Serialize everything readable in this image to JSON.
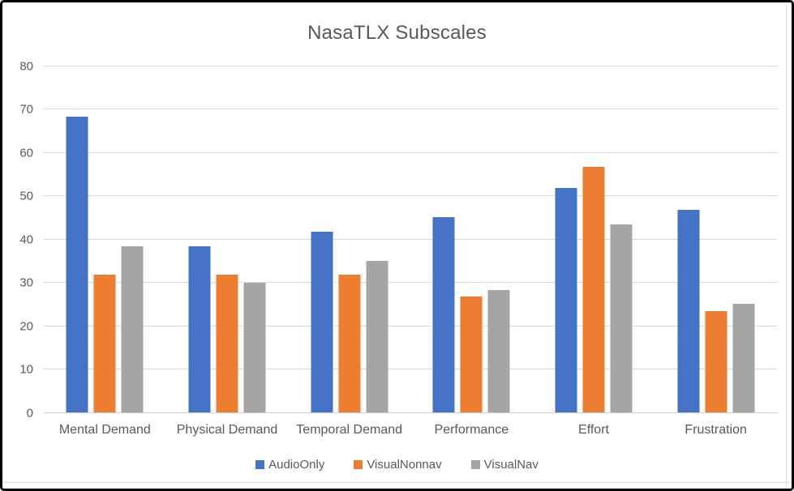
{
  "chart_data": {
    "type": "bar",
    "title": "NasaTLX Subscales",
    "categories": [
      "Mental Demand",
      "Physical Demand",
      "Temporal Demand",
      "Performance",
      "Effort",
      "Frustration"
    ],
    "series": [
      {
        "name": "AudioOnly",
        "color": "#4472C4",
        "values": [
          68.3,
          38.3,
          41.7,
          45.0,
          51.7,
          46.7
        ]
      },
      {
        "name": "VisualNonnav",
        "color": "#ED7D31",
        "values": [
          31.7,
          31.7,
          31.7,
          26.7,
          56.7,
          23.3
        ]
      },
      {
        "name": "VisualNav",
        "color": "#A5A5A5",
        "values": [
          38.3,
          30.0,
          35.0,
          28.3,
          43.3,
          25.0
        ]
      }
    ],
    "xlabel": "",
    "ylabel": "",
    "ylim": [
      0,
      80
    ],
    "ytick_interval": 10,
    "yticks": [
      0,
      10,
      20,
      30,
      40,
      50,
      60,
      70,
      80
    ],
    "grid": true,
    "legend_position": "bottom"
  },
  "colors": {
    "text": "#595959",
    "gridline": "#D9D9D9",
    "frame_border": "#000000",
    "chart_border": "#D9D9D9",
    "background": "#FFFFFF"
  }
}
